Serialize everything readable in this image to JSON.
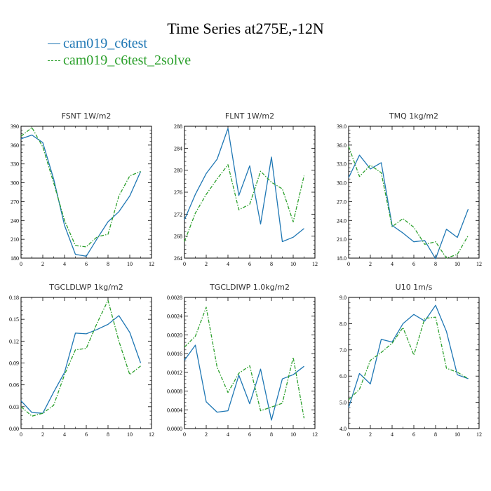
{
  "title": "Time Series at275E,-12N",
  "legend": [
    {
      "label": "cam019_c6test",
      "color": "#1f77b4",
      "style": "solid"
    },
    {
      "label": "cam019_c6test_2solve",
      "color": "#2ca02c",
      "style": "dashed"
    }
  ],
  "chart_data": [
    {
      "type": "line",
      "title": "FSNT   1W/m2",
      "xlim": [
        0,
        12
      ],
      "xticks": [
        0,
        2,
        4,
        6,
        8,
        10,
        12
      ],
      "ylim": [
        180,
        390
      ],
      "yticks": [
        180,
        210,
        240,
        270,
        300,
        330,
        360,
        390
      ],
      "ytick_labels": [
        "180",
        "210",
        "240",
        "270",
        "300",
        "330",
        "360",
        "390"
      ],
      "x": [
        0,
        1,
        2,
        3,
        4,
        5,
        6,
        7,
        8,
        9,
        10,
        11
      ],
      "series": [
        {
          "name": "cam019_c6test",
          "values": [
            370,
            376,
            364,
            306,
            232,
            186,
            183,
            211,
            238,
            254,
            279,
            318
          ]
        },
        {
          "name": "cam019_c6test_2solve",
          "values": [
            374,
            388,
            357,
            300,
            240,
            200,
            198,
            214,
            218,
            279,
            311,
            318
          ]
        }
      ]
    },
    {
      "type": "line",
      "title": "FLNT   1W/m2",
      "xlim": [
        0,
        12
      ],
      "xticks": [
        0,
        2,
        4,
        6,
        8,
        10,
        12
      ],
      "ylim": [
        264,
        288
      ],
      "yticks": [
        264,
        268,
        272,
        276,
        280,
        284,
        288
      ],
      "ytick_labels": [
        "264",
        "268",
        "272",
        "276",
        "280",
        "284",
        "288"
      ],
      "x": [
        0,
        1,
        2,
        3,
        4,
        5,
        6,
        7,
        8,
        9,
        10,
        11
      ],
      "series": [
        {
          "name": "cam019_c6test",
          "values": [
            271.0,
            275.6,
            279.4,
            282.0,
            287.6,
            275.4,
            280.8,
            270.2,
            282.4,
            267.0,
            267.8,
            269.4
          ]
        },
        {
          "name": "cam019_c6test_2solve",
          "values": [
            267.0,
            272.2,
            275.6,
            278.4,
            281.0,
            272.8,
            273.8,
            279.8,
            277.8,
            276.6,
            270.6,
            279.0
          ]
        }
      ]
    },
    {
      "type": "line",
      "title": "TMQ   1kg/m2",
      "xlim": [
        0,
        12
      ],
      "xticks": [
        0,
        2,
        4,
        6,
        8,
        10,
        12
      ],
      "ylim": [
        18.0,
        39.0
      ],
      "yticks": [
        18,
        21,
        24,
        27,
        30,
        33,
        36,
        39
      ],
      "ytick_labels": [
        "18.0",
        "21.0",
        "24.0",
        "27.0",
        "30.0",
        "33.0",
        "36.0",
        "39.0"
      ],
      "x": [
        0,
        1,
        2,
        3,
        4,
        5,
        6,
        7,
        8,
        9,
        10,
        11
      ],
      "series": [
        {
          "name": "cam019_c6test",
          "values": [
            30.8,
            34.4,
            32.2,
            33.2,
            23.2,
            22.0,
            20.6,
            20.8,
            17.9,
            22.6,
            21.3,
            25.8
          ]
        },
        {
          "name": "cam019_c6test_2solve",
          "values": [
            35.8,
            31.0,
            32.8,
            31.6,
            23.0,
            24.3,
            22.9,
            20.2,
            20.6,
            18.0,
            18.6,
            21.6
          ]
        }
      ]
    },
    {
      "type": "line",
      "title": "TGCLDLWP   1kg/m2",
      "xlim": [
        0,
        12
      ],
      "xticks": [
        0,
        2,
        4,
        6,
        8,
        10,
        12
      ],
      "ylim": [
        0,
        0.18
      ],
      "yticks": [
        0,
        0.03,
        0.06,
        0.09,
        0.12,
        0.15,
        0.18
      ],
      "ytick_labels": [
        "0.00",
        "0.03",
        "0.06",
        "0.09",
        "0.12",
        "0.15",
        "0.18"
      ],
      "x": [
        0,
        1,
        2,
        3,
        4,
        5,
        6,
        7,
        8,
        9,
        10,
        11
      ],
      "series": [
        {
          "name": "cam019_c6test",
          "values": [
            0.038,
            0.022,
            0.021,
            0.05,
            0.077,
            0.131,
            0.13,
            0.136,
            0.143,
            0.155,
            0.132,
            0.09
          ]
        },
        {
          "name": "cam019_c6test_2solve",
          "values": [
            0.03,
            0.017,
            0.021,
            0.032,
            0.074,
            0.108,
            0.11,
            0.145,
            0.176,
            0.12,
            0.074,
            0.086
          ]
        }
      ]
    },
    {
      "type": "line",
      "title": "TGCLDIWP   1.0kg/m2",
      "xlim": [
        0,
        12
      ],
      "xticks": [
        0,
        2,
        4,
        6,
        8,
        10,
        12
      ],
      "ylim": [
        0,
        0.0028
      ],
      "yticks": [
        0,
        0.0004,
        0.0008,
        0.0012,
        0.0016,
        0.002,
        0.0024,
        0.0028
      ],
      "ytick_labels": [
        "0.0000",
        "0.0004",
        "0.0008",
        "0.0012",
        "0.0016",
        "0.0020",
        "0.0024",
        "0.0028"
      ],
      "x": [
        0,
        1,
        2,
        3,
        4,
        5,
        6,
        7,
        8,
        9,
        10,
        11
      ],
      "series": [
        {
          "name": "cam019_c6test",
          "values": [
            0.00146,
            0.00178,
            0.00057,
            0.00035,
            0.00038,
            0.00114,
            0.00053,
            0.00127,
            0.00018,
            0.00106,
            0.00115,
            0.00133
          ]
        },
        {
          "name": "cam019_c6test_2solve",
          "values": [
            0.00174,
            0.00197,
            0.00259,
            0.00131,
            0.00077,
            0.00118,
            0.00134,
            0.00038,
            0.00046,
            0.00054,
            0.00152,
            0.00022
          ]
        }
      ]
    },
    {
      "type": "line",
      "title": "U10   1m/s",
      "xlim": [
        0,
        12
      ],
      "xticks": [
        0,
        2,
        4,
        6,
        8,
        10,
        12
      ],
      "ylim": [
        4.0,
        9.0
      ],
      "yticks": [
        4,
        5,
        6,
        7,
        8,
        9
      ],
      "ytick_labels": [
        "4.0",
        "5.0",
        "6.0",
        "7.0",
        "8.0",
        "9.0"
      ],
      "x": [
        0,
        1,
        2,
        3,
        4,
        5,
        6,
        7,
        8,
        9,
        10,
        11
      ],
      "series": [
        {
          "name": "cam019_c6test",
          "values": [
            4.8,
            6.1,
            5.7,
            7.4,
            7.3,
            8.0,
            8.35,
            8.1,
            8.7,
            7.7,
            6.05,
            5.9
          ]
        },
        {
          "name": "cam019_c6test_2solve",
          "values": [
            5.1,
            5.5,
            6.6,
            6.9,
            7.25,
            7.85,
            6.8,
            8.2,
            8.25,
            6.3,
            6.15,
            5.9
          ]
        }
      ]
    }
  ]
}
